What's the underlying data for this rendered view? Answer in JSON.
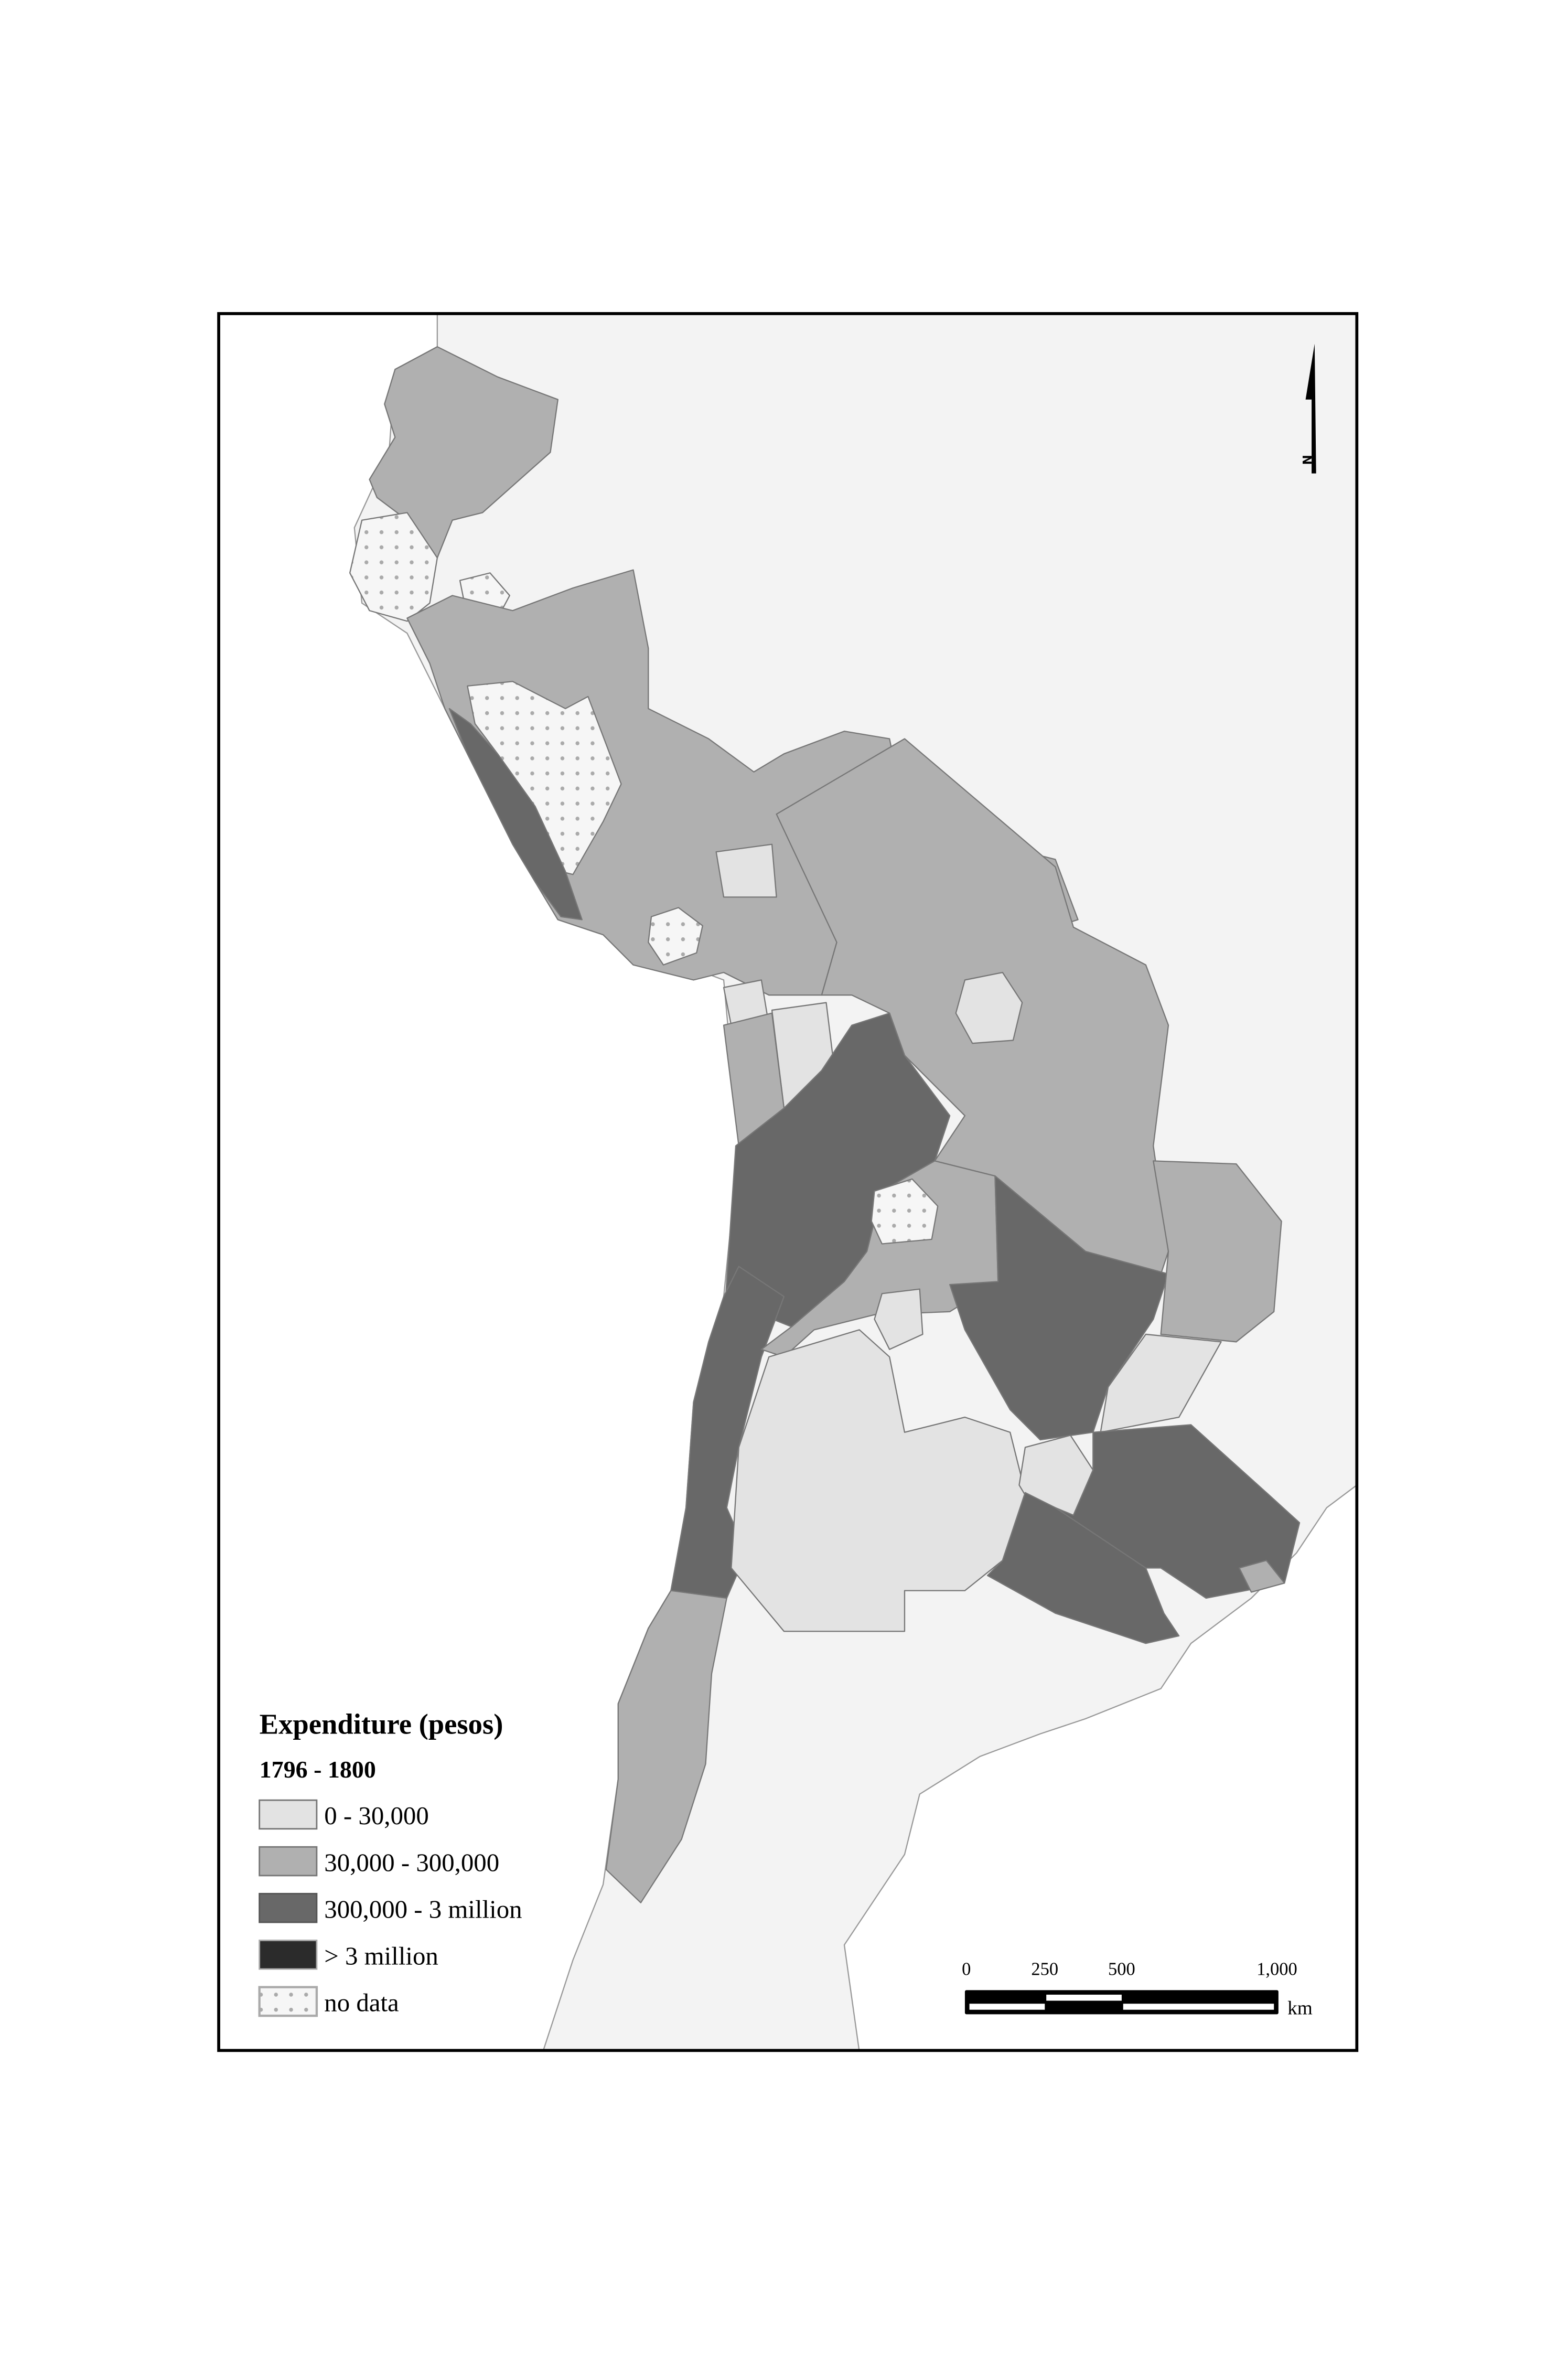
{
  "legend": {
    "title": "Expenditure (pesos)",
    "period": "1796 - 1800",
    "classes": [
      {
        "label": "0 - 30,000",
        "color": "#e3e3e3"
      },
      {
        "label": "30,000 - 300,000",
        "color": "#b0b0b0"
      },
      {
        "label": "300,000 - 3 million",
        "color": "#686868"
      },
      {
        "label": "> 3 million",
        "color": "#2b2b2b"
      },
      {
        "label": "no data",
        "pattern": "dotted"
      }
    ]
  },
  "scale_bar": {
    "ticks": [
      "0",
      "250",
      "500",
      "1,000"
    ],
    "unit": "km"
  },
  "north_arrow": {
    "label": "N"
  },
  "colors": {
    "land": "#f3f3f3",
    "ocean": "#ffffff",
    "frame": "#000000"
  }
}
